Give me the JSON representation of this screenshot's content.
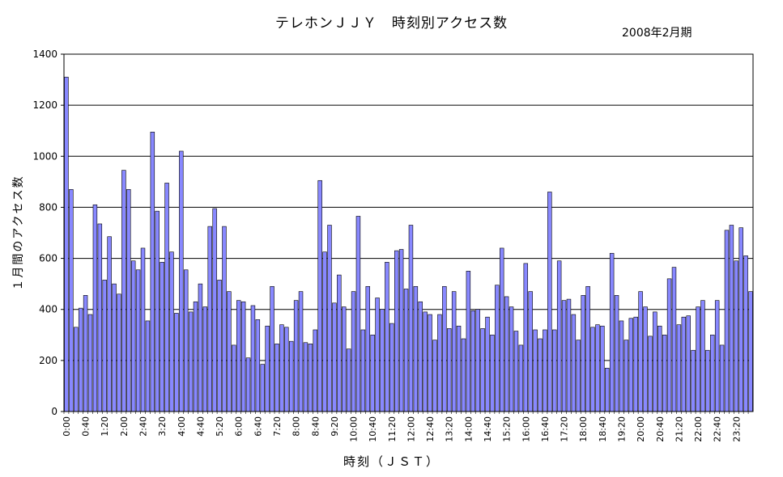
{
  "chart_data": {
    "type": "bar",
    "title": "テレホンＪＪＹ　時刻別アクセス数",
    "subtitle": "2008年2月期",
    "xlabel": "時刻（ＪＳＴ）",
    "ylabel": "１月間のアクセス数",
    "ylim": [
      0,
      1400
    ],
    "yticks": [
      0,
      200,
      400,
      600,
      800,
      1000,
      1200,
      1400
    ],
    "grid": true,
    "x_tick_labels": [
      "0:00",
      "0:40",
      "1:20",
      "2:00",
      "2:40",
      "3:20",
      "4:00",
      "4:40",
      "5:20",
      "6:00",
      "6:40",
      "7:20",
      "8:00",
      "8:40",
      "9:20",
      "10:00",
      "10:40",
      "11:20",
      "12:00",
      "12:40",
      "13:20",
      "14:00",
      "14:40",
      "15:20",
      "16:00",
      "16:40",
      "17:20",
      "18:00",
      "18:40",
      "19:20",
      "20:00",
      "20:40",
      "21:20",
      "22:00",
      "22:40",
      "23:20"
    ],
    "series": [
      {
        "color": "#8888ff",
        "values": [
          1310,
          870,
          330,
          405,
          455,
          380,
          810,
          735,
          515,
          685,
          500,
          460,
          945,
          870,
          590,
          555,
          640,
          355,
          1095,
          785,
          585,
          895,
          625,
          385,
          1020,
          555,
          390,
          430,
          500,
          410,
          725,
          795,
          515,
          725,
          470,
          260,
          435,
          430,
          210,
          415,
          360,
          185,
          335,
          490,
          265,
          340,
          330,
          275,
          435,
          470,
          270,
          265,
          320,
          905,
          625,
          730,
          425,
          535,
          410,
          245,
          470,
          765,
          320,
          490,
          300,
          445,
          400,
          585,
          345,
          630,
          635,
          480,
          730,
          490,
          430,
          390,
          380,
          280,
          380,
          490,
          325,
          470,
          335,
          285,
          550,
          395,
          400,
          325,
          370,
          300,
          495,
          640,
          450,
          410,
          315,
          260,
          580,
          470,
          320,
          285,
          320,
          860,
          320,
          590,
          435,
          440,
          380,
          280,
          455,
          490,
          330,
          340,
          335,
          170,
          620,
          455,
          355,
          280,
          365,
          370,
          470,
          410,
          295,
          390,
          335,
          300,
          520,
          565,
          340,
          370,
          375,
          240,
          410,
          435,
          240,
          300,
          435,
          260,
          710,
          730,
          590,
          720,
          610,
          470
        ]
      }
    ]
  }
}
